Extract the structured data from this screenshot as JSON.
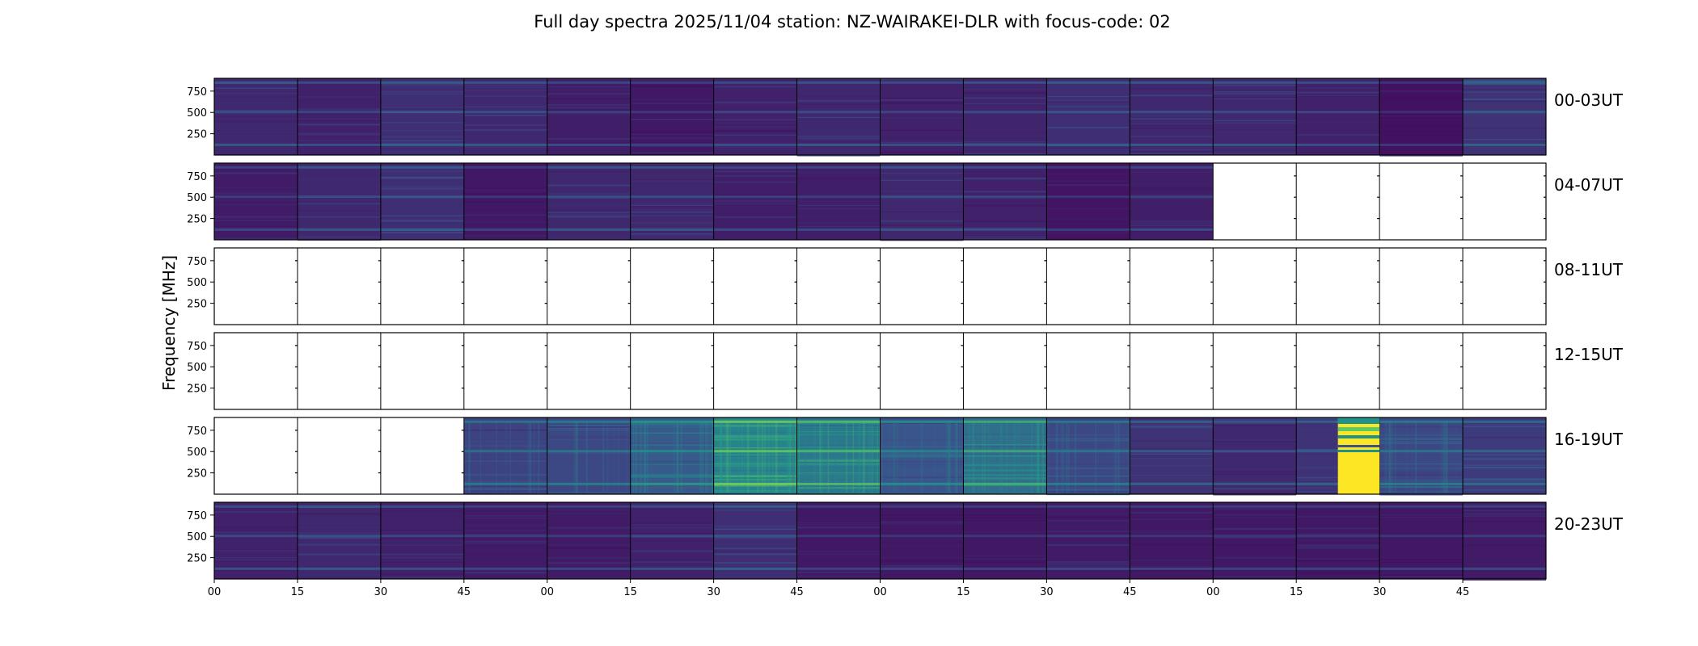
{
  "chart_data": {
    "type": "heatmap",
    "title": "Full day spectra 2025/11/04 station: NZ-WAIRAKEI-DLR with focus-code: 02",
    "ylabel": "Frequency [MHz]",
    "xlabel": "",
    "y_ticks": [
      "750",
      "500",
      "250"
    ],
    "x_ticks": [
      "00",
      "15",
      "30",
      "45",
      "00",
      "15",
      "30",
      "45",
      "00",
      "15",
      "30",
      "45",
      "00",
      "15",
      "30",
      "45"
    ],
    "colormap": [
      "#440154",
      "#3b528b",
      "#21918c",
      "#5ec962",
      "#fde725"
    ],
    "rows": [
      {
        "label": "00-03UT",
        "intensity": [
          0.12,
          0.1,
          0.14,
          0.12,
          0.09,
          0.07,
          0.1,
          0.12,
          0.1,
          0.11,
          0.14,
          0.12,
          0.12,
          0.1,
          0.05,
          0.15
        ]
      },
      {
        "label": "04-07UT",
        "intensity": [
          0.08,
          0.12,
          0.14,
          0.07,
          0.12,
          0.12,
          0.09,
          0.09,
          0.12,
          0.1,
          0.06,
          0.09,
          null,
          null,
          null,
          null
        ]
      },
      {
        "label": "08-11UT",
        "intensity": [
          null,
          null,
          null,
          null,
          null,
          null,
          null,
          null,
          null,
          null,
          null,
          null,
          null,
          null,
          null,
          null
        ]
      },
      {
        "label": "12-15UT",
        "intensity": [
          null,
          null,
          null,
          null,
          null,
          null,
          null,
          null,
          null,
          null,
          null,
          null,
          null,
          null,
          null,
          null
        ]
      },
      {
        "label": "16-19UT",
        "intensity": [
          null,
          null,
          null,
          0.2,
          0.22,
          0.28,
          0.45,
          0.4,
          0.26,
          0.36,
          0.22,
          0.15,
          0.12,
          0.15,
          0.22,
          0.18
        ]
      },
      {
        "label": "20-23UT",
        "intensity": [
          0.1,
          0.12,
          0.1,
          0.08,
          0.08,
          0.1,
          0.14,
          0.07,
          0.07,
          0.07,
          0.08,
          0.07,
          0.07,
          0.07,
          0.07,
          0.08
        ]
      }
    ],
    "saturated_block": {
      "row": "16-19UT",
      "x_range": [
        "22.5",
        "30"
      ],
      "color": "#fde725"
    }
  }
}
